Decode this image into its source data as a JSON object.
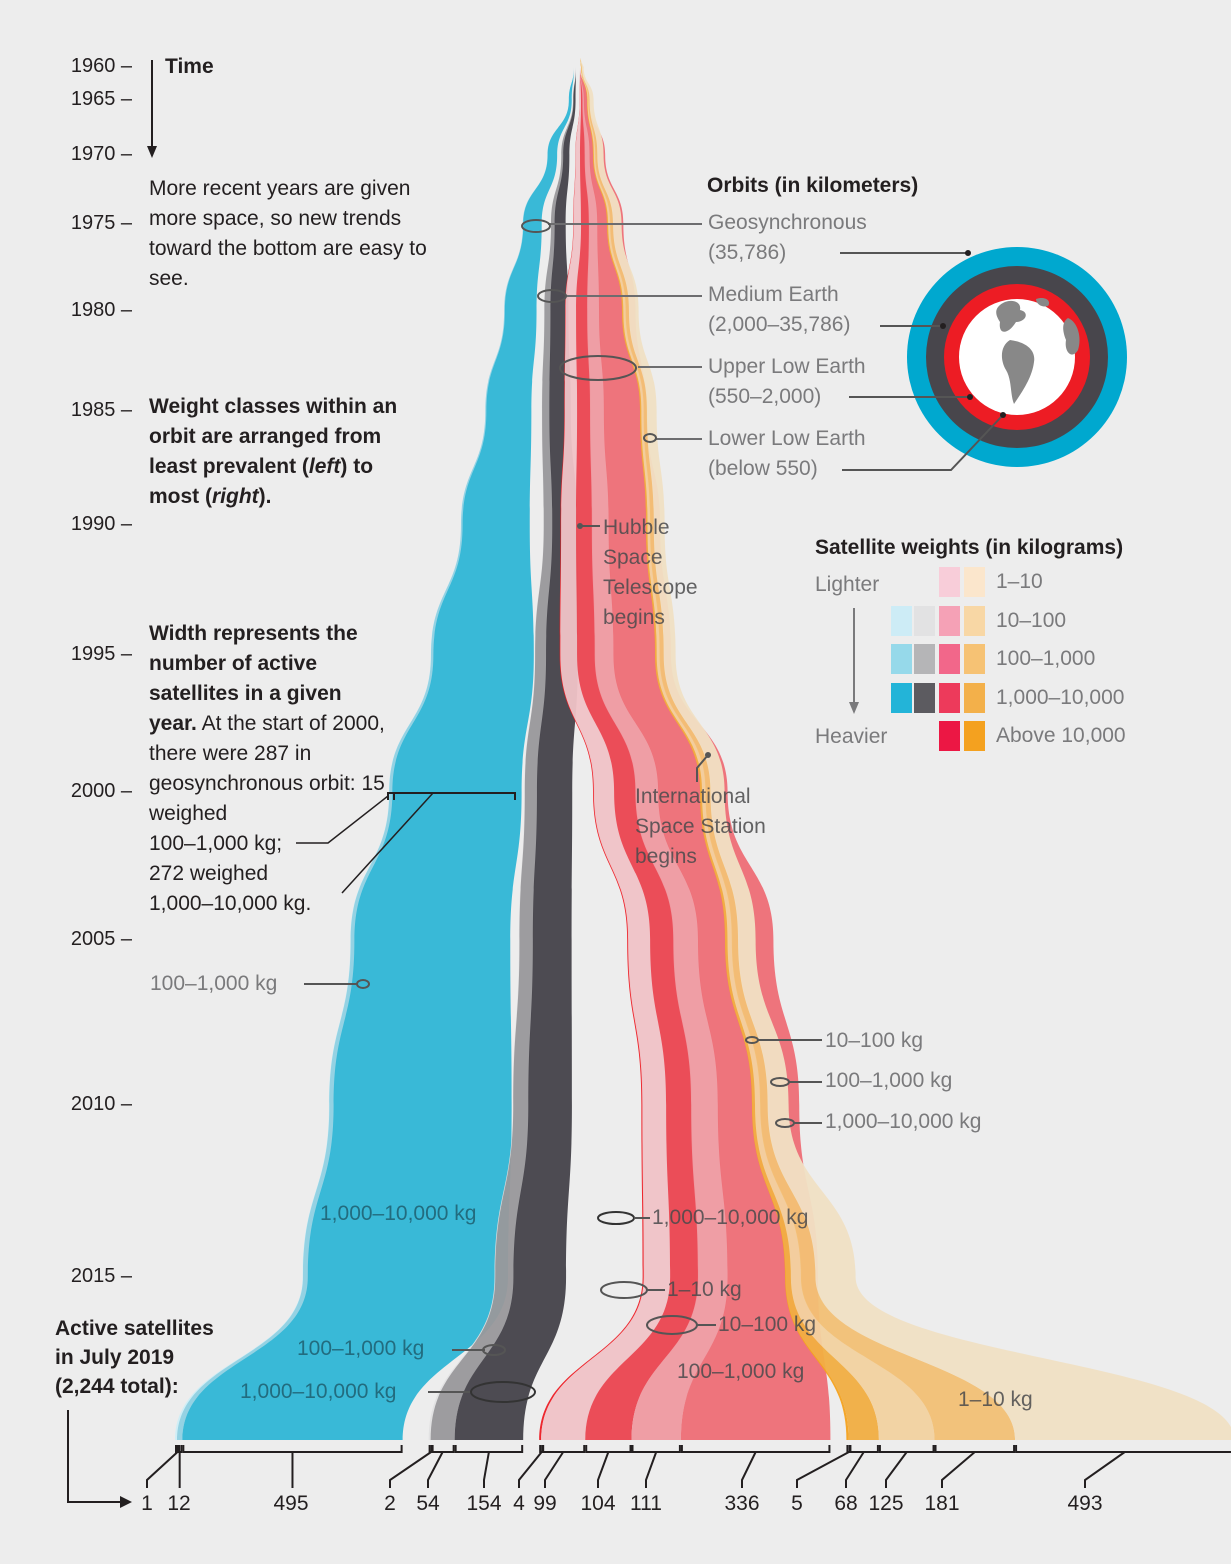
{
  "chart_data": {
    "type": "area",
    "title": "Active satellites by orbit and weight class",
    "time_axis": {
      "label": "Time",
      "ticks": [
        "1960",
        "1965",
        "1970",
        "1975",
        "1980",
        "1985",
        "1990",
        "1995",
        "2000",
        "2005",
        "2010",
        "2015"
      ],
      "tick_suffix": " –",
      "note": "More recent years are given more space, so new trends toward the bottom are easy to see.",
      "scale": "non-linear (recent years expanded)",
      "range": [
        1960,
        2019
      ]
    },
    "orbits": [
      {
        "name": "Geosynchronous",
        "range_km": "(35,786)",
        "color": "#00a8cf"
      },
      {
        "name": "Medium Earth",
        "range_km": "(2,000–35,786)",
        "color": "#48464c"
      },
      {
        "name": "Upper Low Earth",
        "range_km": "(550–2,000)",
        "color": "#ed1c24"
      },
      {
        "name": "Lower Low Earth",
        "range_km": "(below 550)",
        "color": "#f4a21f"
      }
    ],
    "weight_classes": [
      "1–10",
      "10–100",
      "100–1,000",
      "1,000–10,000",
      "Above 10,000"
    ],
    "series_july_2019": [
      {
        "orbit": "Geosynchronous",
        "weight": "10–100",
        "value": 1,
        "color": "#cdeef7"
      },
      {
        "orbit": "Geosynchronous",
        "weight": "100–1,000",
        "value": 12,
        "color": "#8fd1e3"
      },
      {
        "orbit": "Geosynchronous",
        "weight": "1,000–10,000",
        "value": 495,
        "color": "#2fb6d6"
      },
      {
        "orbit": "Medium Earth",
        "weight": "10–100",
        "value": 2,
        "color": "#e2e2e3"
      },
      {
        "orbit": "Medium Earth",
        "weight": "100–1,000",
        "value": 54,
        "color": "#99989b"
      },
      {
        "orbit": "Medium Earth",
        "weight": "1,000–10,000",
        "value": 154,
        "color": "#45424a"
      },
      {
        "orbit": "Upper Low Earth",
        "weight": "Above 10,000",
        "value": 4,
        "color": "#ed1c24"
      },
      {
        "orbit": "Upper Low Earth",
        "weight": "1–10",
        "value": 99,
        "color": "#f0c3c7"
      },
      {
        "orbit": "Upper Low Earth",
        "weight": "1,000–10,000",
        "value": 104,
        "color": "#eb4550"
      },
      {
        "orbit": "Upper Low Earth",
        "weight": "10–100",
        "value": 111,
        "color": "#ef9aa1"
      },
      {
        "orbit": "Upper Low Earth",
        "weight": "100–1,000",
        "value": 336,
        "color": "#ee6e76"
      },
      {
        "orbit": "Lower Low Earth",
        "weight": "Above 10,000",
        "value": 5,
        "color": "#f4a21f"
      },
      {
        "orbit": "Lower Low Earth",
        "weight": "1,000–10,000",
        "value": 68,
        "color": "#f1ae42"
      },
      {
        "orbit": "Lower Low Earth",
        "weight": "10–100",
        "value": 125,
        "color": "#f2d2a0"
      },
      {
        "orbit": "Lower Low Earth",
        "weight": "100–1,000",
        "value": 181,
        "color": "#f2c075"
      },
      {
        "orbit": "Lower Low Earth",
        "weight": "1–10",
        "value": 493,
        "color": "#f0e0c4"
      }
    ],
    "example_2000_geosynchronous": {
      "total": 287,
      "100–1,000 kg": 15,
      "1,000–10,000 kg": 272
    },
    "total_july_2019": 2244,
    "annotations": [
      {
        "text": "Hubble Space Telescope begins",
        "year": 1990
      },
      {
        "text": "International Space Station begins",
        "year": 1998
      }
    ]
  },
  "text": {
    "time_label": "Time",
    "time_note": "More recent years are given more space, so new trends toward the bottom are easy to see.",
    "weight_note_bold": "Weight classes within an orbit are arranged from least prevalent (",
    "weight_note_left": "left",
    "weight_note_mid": ") to most (",
    "weight_note_right": "right",
    "weight_note_end": ").",
    "width_note_bold": "Width represents the number of active satellites in a given year.",
    "width_note_rest": " At the start of 2000, there were 287 in geosynchronous orbit: 15 weighed",
    "width_note_l1": "100–1,000 kg;",
    "width_note_l2": "272 weighed",
    "width_note_l3": "1,000–10,000 kg.",
    "active_title_1": "Active satellites",
    "active_title_2": "in July 2019",
    "active_title_3": "(2,244 total):",
    "orbits_title": "Orbits (in kilometers)",
    "weights_title": "Satellite weights (in kilograms)",
    "lighter": "Lighter",
    "heavier": "Heavier",
    "hubble": [
      "Hubble",
      "Space",
      "Telescope",
      "begins"
    ],
    "iss": [
      "International",
      "Space Station",
      "begins"
    ],
    "geo_100_1000": "100–1,000 kg",
    "geo_1000_10000": "1,000–10,000 kg",
    "meo_100_1000": "100–1,000 kg",
    "meo_1000_10000": "1,000–10,000 kg",
    "ule_1000_10000": "1,000–10,000 kg",
    "ule_1_10": "1–10 kg",
    "ule_10_100": "10–100 kg",
    "ule_100_1000": "100–1,000 kg",
    "lle_10_100": "10–100 kg",
    "lle_100_1000": "100–1,000 kg",
    "lle_1000_10000": "1,000–10,000 kg",
    "lle_1_10": "1–10 kg"
  },
  "legend_weights": [
    {
      "label": "1–10",
      "colors": [
        null,
        null,
        "#f8cdd9",
        "#fbe6cc"
      ]
    },
    {
      "label": "10–100",
      "colors": [
        "#cdecf6",
        "#e2e2e3",
        "#f5a1b6",
        "#f8d7a5"
      ]
    },
    {
      "label": "100–1,000",
      "colors": [
        "#96d9ea",
        "#b5b5b7",
        "#f2678a",
        "#f6c274"
      ]
    },
    {
      "label": "1,000–10,000",
      "colors": [
        "#23b4d8",
        "#5c5b60",
        "#ed3a5b",
        "#f3b04a"
      ]
    },
    {
      "label": "Above 10,000",
      "colors": [
        null,
        null,
        "#ec1744",
        "#f4a11f"
      ]
    }
  ]
}
